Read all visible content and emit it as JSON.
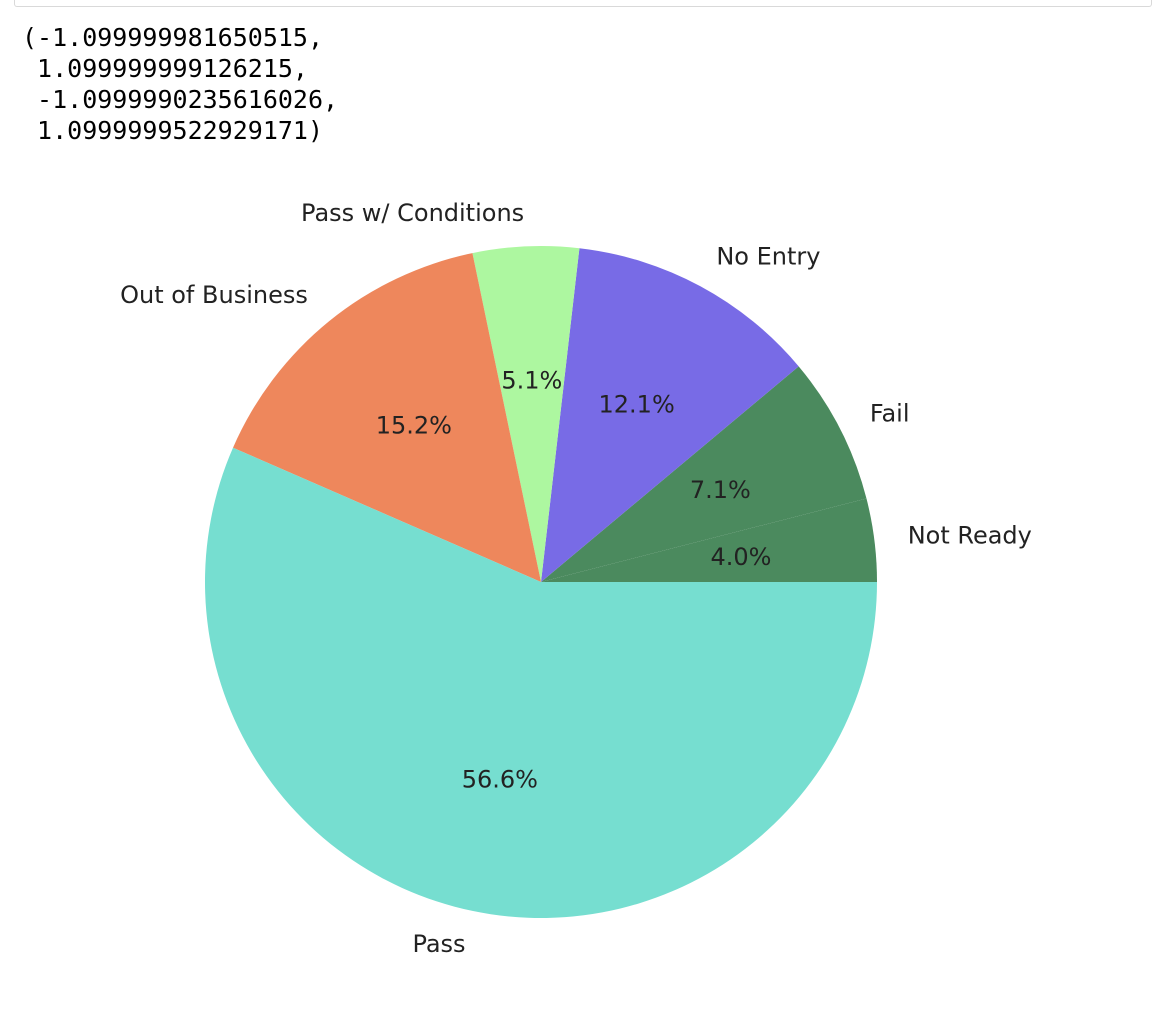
{
  "output": {
    "lines": [
      "(-1.099999981650515,",
      " 1.099999999126215,",
      " -1.0999990235616026,",
      " 1.0999999522929171)"
    ]
  },
  "chart_data": {
    "type": "pie",
    "title": "",
    "start_angle_deg": 0,
    "direction": "counterclockwise",
    "slices": [
      {
        "label": "Not Ready",
        "value": 4.0,
        "pct_label": "4.0%",
        "color": "#4b8a5e"
      },
      {
        "label": "Fail",
        "value": 7.1,
        "pct_label": "7.1%",
        "color": "#4b8a5e"
      },
      {
        "label": "No Entry",
        "value": 12.1,
        "pct_label": "12.1%",
        "color": "#786be6"
      },
      {
        "label": "Pass w/ Conditions",
        "value": 5.1,
        "pct_label": "5.1%",
        "color": "#adf7a0"
      },
      {
        "label": "Out of Business",
        "value": 15.2,
        "pct_label": "15.2%",
        "color": "#ee875c"
      },
      {
        "label": "Pass",
        "value": 56.6,
        "pct_label": "56.6%",
        "color": "#76ded0"
      }
    ]
  }
}
